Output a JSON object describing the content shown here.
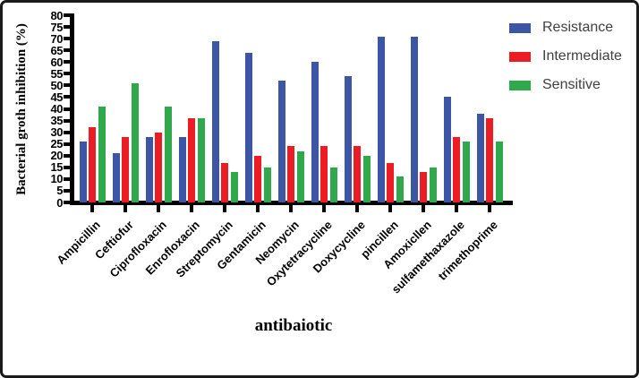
{
  "chart_data": {
    "type": "bar",
    "title": "",
    "xlabel": "antibaiotic",
    "ylabel": "Bacterial groth inhibition (%)",
    "ylim": [
      0,
      80
    ],
    "ytick_step": 5,
    "grid": false,
    "legend_position": "top-right",
    "categories": [
      "Ampicillin",
      "Ceftiofur",
      "Ciprofloxacin",
      "Enrofloxacin",
      "Streptomycin",
      "Gentamicin",
      "Neomycin",
      "Oxytetracycline",
      "Doxycycline",
      "pincillen",
      "Amoxicllen",
      "sulfamethaxazole",
      "trimethoprime"
    ],
    "series": [
      {
        "name": "Resistance",
        "color": "#3C55A5",
        "values": [
          26,
          21,
          28,
          28,
          69,
          64,
          52,
          60,
          54,
          71,
          71,
          45,
          38
        ]
      },
      {
        "name": "Intermediate",
        "color": "#EC1C24",
        "values": [
          32,
          28,
          30,
          36,
          17,
          20,
          24,
          24,
          24,
          17,
          13,
          28,
          36
        ]
      },
      {
        "name": "Sensitive",
        "color": "#2FA94C",
        "values": [
          41,
          51,
          41,
          36,
          13,
          15,
          22,
          15,
          20,
          11,
          15,
          26,
          26
        ]
      }
    ]
  },
  "colors": {
    "frame_border": "#1A1A1A",
    "axis": "#000000",
    "tick_label_text": "#000000",
    "legend_text": "#414042",
    "background": "#FFFFFF"
  }
}
